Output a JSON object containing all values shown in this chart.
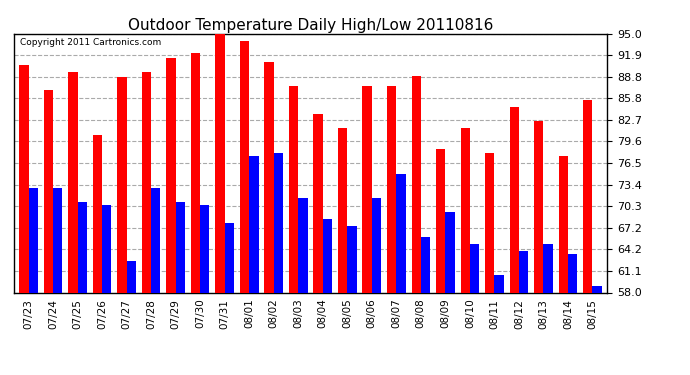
{
  "title": "Outdoor Temperature Daily High/Low 20110816",
  "copyright": "Copyright 2011 Cartronics.com",
  "dates": [
    "07/23",
    "07/24",
    "07/25",
    "07/26",
    "07/27",
    "07/28",
    "07/29",
    "07/30",
    "07/31",
    "08/01",
    "08/02",
    "08/03",
    "08/04",
    "08/05",
    "08/06",
    "08/07",
    "08/08",
    "08/09",
    "08/10",
    "08/11",
    "08/12",
    "08/13",
    "08/14",
    "08/15"
  ],
  "highs": [
    90.5,
    87.0,
    89.5,
    80.5,
    88.8,
    89.5,
    91.5,
    92.3,
    95.0,
    94.0,
    91.0,
    87.5,
    83.5,
    81.5,
    87.5,
    87.5,
    89.0,
    78.5,
    81.5,
    78.0,
    84.5,
    82.5,
    77.5,
    85.5
  ],
  "lows": [
    73.0,
    73.0,
    71.0,
    70.5,
    62.5,
    73.0,
    71.0,
    70.5,
    68.0,
    77.5,
    78.0,
    71.5,
    68.5,
    67.5,
    71.5,
    75.0,
    66.0,
    69.5,
    65.0,
    60.5,
    64.0,
    65.0,
    63.5,
    59.0
  ],
  "high_color": "#ff0000",
  "low_color": "#0000ff",
  "bg_color": "#ffffff",
  "grid_color": "#aaaaaa",
  "yticks": [
    58.0,
    61.1,
    64.2,
    67.2,
    70.3,
    73.4,
    76.5,
    79.6,
    82.7,
    85.8,
    88.8,
    91.9,
    95.0
  ],
  "ymin": 58.0,
  "ymax": 95.0,
  "bar_width": 0.38,
  "figwidth": 6.9,
  "figheight": 3.75,
  "dpi": 100
}
